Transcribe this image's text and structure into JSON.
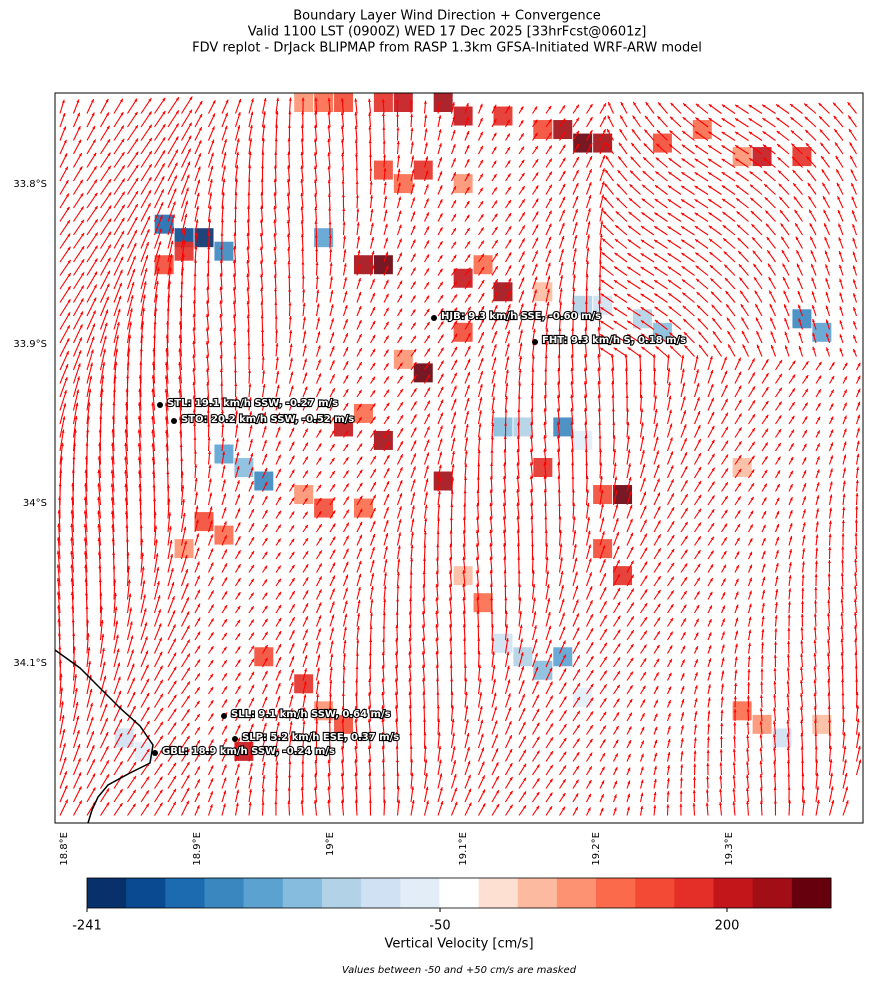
{
  "header": {
    "title_lines": [
      "Boundary Layer Wind Direction + Convergence",
      "Valid 1100 LST (0900Z) WED 17 Dec 2025 [33hrFcst@0601z]",
      "FDV replot - DrJack BLIPMAP from RASP 1.3km GFSA-Initiated WRF-ARW model"
    ]
  },
  "map": {
    "lat_labels": [
      "33.8°S",
      "33.9°S",
      "34°S",
      "34.1°S"
    ],
    "lon_labels": [
      "18.8°E",
      "18.9°E",
      "19°E",
      "19.1°E",
      "19.2°E",
      "19.3°E"
    ],
    "stations": [
      {
        "label": "HJB: 9.3 km/h SSE, -0.60 m/s"
      },
      {
        "label": "FHT: 9.3 km/h S, 0.18 m/s"
      },
      {
        "label": "STL: 19.1 km/h SSW, -0.27 m/s"
      },
      {
        "label": "STO: 20.2 km/h SSW, -0.52 m/s"
      },
      {
        "label": "SLL: 9.1 km/h SSW, 0.64 m/s"
      },
      {
        "label": "SLP: 5.2 km/h ESE, 0.37 m/s"
      },
      {
        "label": "GBL: 18.9 km/h SSW, -0.24 m/s"
      }
    ],
    "arrow_color": "#ff0000"
  },
  "colorbar": {
    "colors": [
      "#08306b",
      "#0a4a90",
      "#1c6ab0",
      "#3a87c0",
      "#5ca2d0",
      "#86bcdd",
      "#b1d2e7",
      "#cfe1f2",
      "#e2edf8",
      "#ffffff",
      "#fee0d2",
      "#fcbba1",
      "#fc9272",
      "#fb6a4a",
      "#f34a36",
      "#e32f27",
      "#c3161b",
      "#a10e15",
      "#67000d"
    ],
    "ticks": [
      -241,
      -50,
      200
    ],
    "label": "Vertical Velocity [cm/s]",
    "note": "Values between -50 and +50 cm/s are masked"
  }
}
